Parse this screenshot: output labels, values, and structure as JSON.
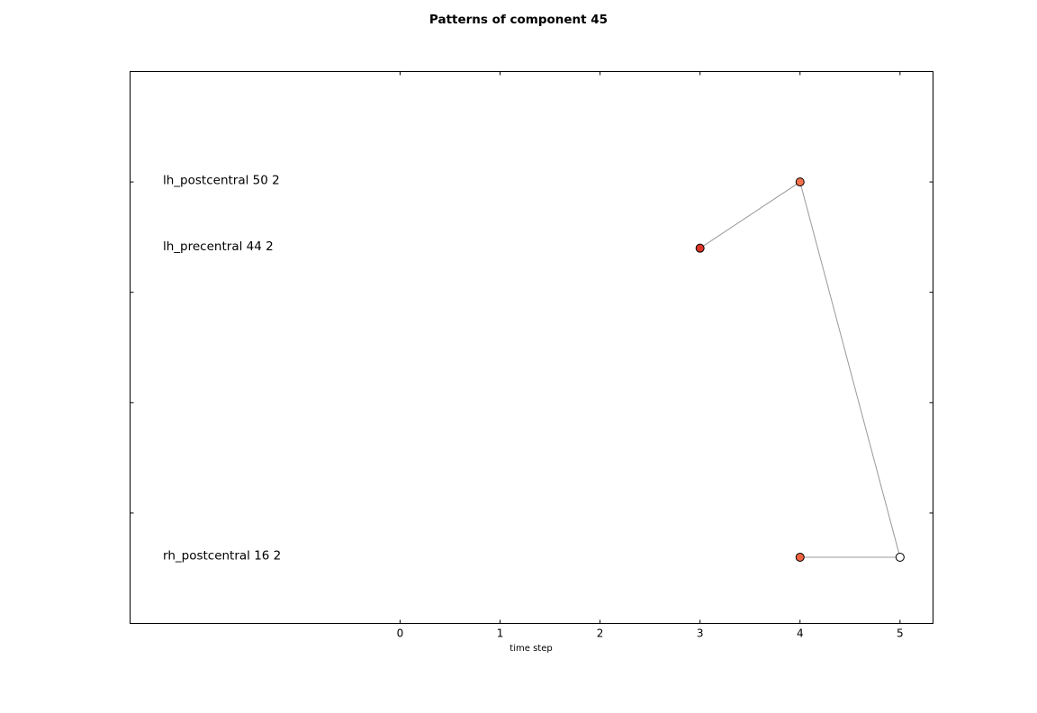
{
  "chart_data": {
    "type": "scatter",
    "title": "Patterns of component 45",
    "xlabel": "time step",
    "ylabel": "",
    "x_ticks": [
      0,
      1,
      2,
      3,
      4,
      5
    ],
    "xlim": [
      -2.7,
      5.33
    ],
    "ylim": [
      0,
      5
    ],
    "y_ticks": [
      1,
      2,
      3,
      4
    ],
    "grid": false,
    "row_labels": [
      {
        "text": "lh_postcentral 50 2",
        "y": 4.02
      },
      {
        "text": "lh_precentral 44 2",
        "y": 3.42
      },
      {
        "text": "rh_postcentral 16 2",
        "y": 0.62
      }
    ],
    "line_segments": [
      {
        "x": [
          3,
          4
        ],
        "y": [
          3.4,
          4.0
        ]
      },
      {
        "x": [
          4,
          5
        ],
        "y": [
          4.0,
          0.6
        ]
      },
      {
        "x": [
          4,
          5
        ],
        "y": [
          0.6,
          0.6
        ]
      }
    ],
    "points": [
      {
        "x": 3,
        "y": 3.4,
        "color": "#dc3626"
      },
      {
        "x": 4,
        "y": 4.0,
        "color": "#f3704d"
      },
      {
        "x": 4,
        "y": 0.6,
        "color": "#f06341"
      },
      {
        "x": 5,
        "y": 0.6,
        "color": "#ffffff"
      }
    ],
    "line_color": "#999999"
  }
}
